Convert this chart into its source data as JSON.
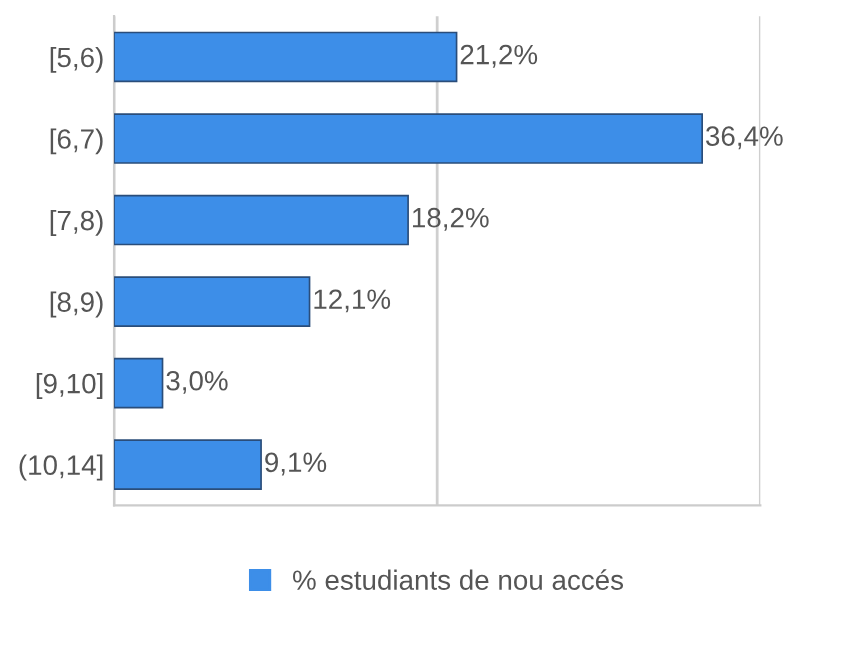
{
  "chart_data": {
    "type": "bar",
    "orientation": "horizontal",
    "categories": [
      "[5,6)",
      "[6,7)",
      "[7,8)",
      "[8,9)",
      "[9,10]",
      "(10,14]"
    ],
    "series": [
      {
        "name": "% estudiants de nou accés",
        "color": "#3d8ee8",
        "values": [
          21.2,
          36.4,
          18.2,
          12.1,
          3.0,
          9.1
        ],
        "value_labels": [
          "21,2%",
          "36,4%",
          "18,2%",
          "12,1%",
          "3,0%",
          "9,1%"
        ]
      }
    ],
    "xlim": [
      0,
      40
    ],
    "xticks": [
      {
        "value": 0,
        "label": null
      },
      {
        "value": 20,
        "label": null
      },
      {
        "value": 40,
        "label": null
      }
    ],
    "tick_labels": "y",
    "grid": "x",
    "legend": "bottom"
  }
}
